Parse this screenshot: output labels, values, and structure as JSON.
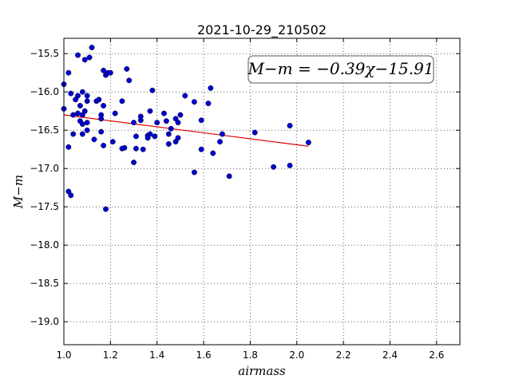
{
  "chart_data": {
    "type": "scatter",
    "title": "2021-10-29_210502",
    "xlabel": "airmass",
    "ylabel": "M−m",
    "xlim": [
      1.0,
      2.7
    ],
    "ylim": [
      -19.3,
      -15.3
    ],
    "y_inverted": true,
    "grid": true,
    "x_ticks": [
      1.0,
      1.2,
      1.4,
      1.6,
      1.8,
      2.0,
      2.2,
      2.4,
      2.6
    ],
    "x_tick_labels": [
      "1.0",
      "1.2",
      "1.4",
      "1.6",
      "1.8",
      "2.0",
      "2.2",
      "2.4",
      "2.6"
    ],
    "y_ticks": [
      -15.5,
      -16.0,
      -16.5,
      -17.0,
      -17.5,
      -18.0,
      -18.5,
      -19.0
    ],
    "y_tick_labels": [
      "−15.5",
      "−16.0",
      "−16.5",
      "−17.0",
      "−17.5",
      "−18.0",
      "−18.5",
      "−19.0"
    ],
    "annotation": "M−m = −0.39χ−15.91",
    "fit": {
      "slope": -0.39,
      "intercept": -15.91,
      "x_range": [
        1.0,
        2.05
      ],
      "color": "#e00000"
    },
    "marker_color": "#0000cc",
    "points": [
      {
        "x": 1.0,
        "y": -16.22
      },
      {
        "x": 1.0,
        "y": -15.9
      },
      {
        "x": 1.02,
        "y": -15.75
      },
      {
        "x": 1.02,
        "y": -16.72
      },
      {
        "x": 1.02,
        "y": -17.3
      },
      {
        "x": 1.03,
        "y": -17.35
      },
      {
        "x": 1.03,
        "y": -16.02
      },
      {
        "x": 1.04,
        "y": -16.3
      },
      {
        "x": 1.04,
        "y": -16.55
      },
      {
        "x": 1.05,
        "y": -16.1
      },
      {
        "x": 1.06,
        "y": -15.52
      },
      {
        "x": 1.06,
        "y": -16.05
      },
      {
        "x": 1.06,
        "y": -16.28
      },
      {
        "x": 1.07,
        "y": -16.18
      },
      {
        "x": 1.07,
        "y": -16.38
      },
      {
        "x": 1.08,
        "y": -16.0
      },
      {
        "x": 1.08,
        "y": -16.3
      },
      {
        "x": 1.08,
        "y": -16.42
      },
      {
        "x": 1.08,
        "y": -16.55
      },
      {
        "x": 1.09,
        "y": -15.58
      },
      {
        "x": 1.09,
        "y": -16.25
      },
      {
        "x": 1.1,
        "y": -16.05
      },
      {
        "x": 1.1,
        "y": -16.12
      },
      {
        "x": 1.1,
        "y": -16.4
      },
      {
        "x": 1.1,
        "y": -16.5
      },
      {
        "x": 1.11,
        "y": -15.55
      },
      {
        "x": 1.12,
        "y": -15.42
      },
      {
        "x": 1.13,
        "y": -16.62
      },
      {
        "x": 1.14,
        "y": -16.12
      },
      {
        "x": 1.15,
        "y": -16.1
      },
      {
        "x": 1.16,
        "y": -16.3
      },
      {
        "x": 1.16,
        "y": -16.35
      },
      {
        "x": 1.16,
        "y": -16.52
      },
      {
        "x": 1.17,
        "y": -16.18
      },
      {
        "x": 1.17,
        "y": -16.7
      },
      {
        "x": 1.17,
        "y": -15.72
      },
      {
        "x": 1.18,
        "y": -15.78
      },
      {
        "x": 1.18,
        "y": -17.53
      },
      {
        "x": 1.19,
        "y": -15.75
      },
      {
        "x": 1.2,
        "y": -15.75
      },
      {
        "x": 1.21,
        "y": -16.65
      },
      {
        "x": 1.22,
        "y": -16.28
      },
      {
        "x": 1.25,
        "y": -16.12
      },
      {
        "x": 1.25,
        "y": -16.74
      },
      {
        "x": 1.26,
        "y": -16.73
      },
      {
        "x": 1.27,
        "y": -15.7
      },
      {
        "x": 1.28,
        "y": -15.85
      },
      {
        "x": 1.3,
        "y": -16.4
      },
      {
        "x": 1.3,
        "y": -16.92
      },
      {
        "x": 1.31,
        "y": -16.58
      },
      {
        "x": 1.31,
        "y": -16.74
      },
      {
        "x": 1.33,
        "y": -16.32
      },
      {
        "x": 1.33,
        "y": -16.37
      },
      {
        "x": 1.34,
        "y": -16.75
      },
      {
        "x": 1.36,
        "y": -16.57
      },
      {
        "x": 1.36,
        "y": -16.6
      },
      {
        "x": 1.37,
        "y": -16.25
      },
      {
        "x": 1.37,
        "y": -16.55
      },
      {
        "x": 1.38,
        "y": -15.98
      },
      {
        "x": 1.39,
        "y": -16.58
      },
      {
        "x": 1.4,
        "y": -16.4
      },
      {
        "x": 1.43,
        "y": -16.28
      },
      {
        "x": 1.44,
        "y": -16.38
      },
      {
        "x": 1.45,
        "y": -16.68
      },
      {
        "x": 1.45,
        "y": -16.55
      },
      {
        "x": 1.46,
        "y": -16.48
      },
      {
        "x": 1.48,
        "y": -16.35
      },
      {
        "x": 1.48,
        "y": -16.65
      },
      {
        "x": 1.49,
        "y": -16.6
      },
      {
        "x": 1.49,
        "y": -16.4
      },
      {
        "x": 1.5,
        "y": -16.3
      },
      {
        "x": 1.52,
        "y": -16.05
      },
      {
        "x": 1.56,
        "y": -16.13
      },
      {
        "x": 1.56,
        "y": -17.05
      },
      {
        "x": 1.59,
        "y": -16.37
      },
      {
        "x": 1.59,
        "y": -16.75
      },
      {
        "x": 1.62,
        "y": -16.15
      },
      {
        "x": 1.63,
        "y": -15.95
      },
      {
        "x": 1.64,
        "y": -16.8
      },
      {
        "x": 1.67,
        "y": -16.65
      },
      {
        "x": 1.68,
        "y": -16.55
      },
      {
        "x": 1.71,
        "y": -17.1
      },
      {
        "x": 1.82,
        "y": -16.53
      },
      {
        "x": 1.9,
        "y": -16.98
      },
      {
        "x": 1.97,
        "y": -16.44
      },
      {
        "x": 1.97,
        "y": -16.96
      },
      {
        "x": 2.05,
        "y": -16.66
      }
    ]
  }
}
